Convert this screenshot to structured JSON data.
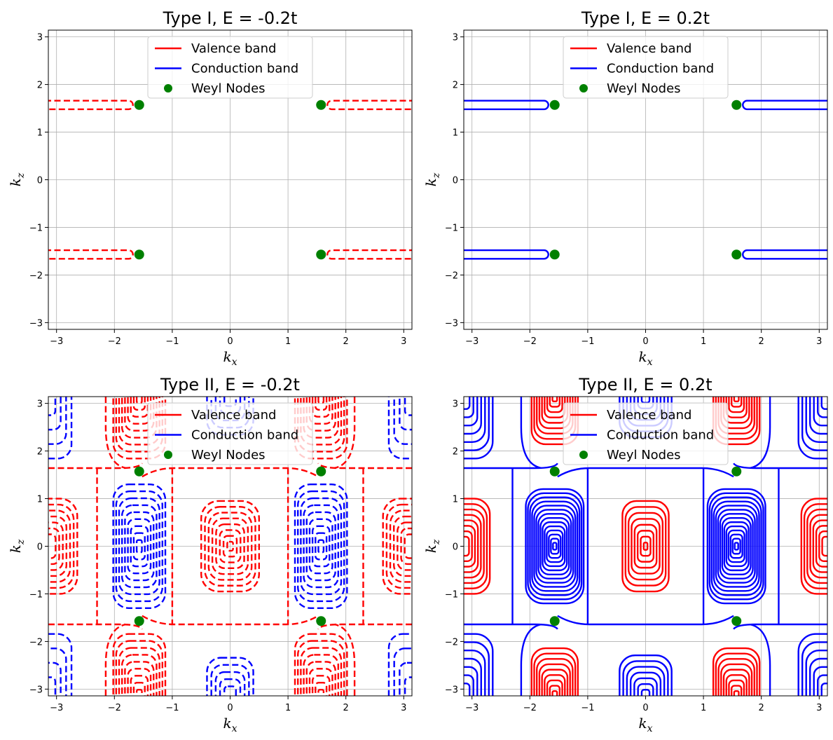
{
  "colors": {
    "valence": "#ff0000",
    "conduction": "#0000ff",
    "nodes": "#008000",
    "grid": "#b0b0b0"
  },
  "chart_data": [
    {
      "type": "contour",
      "title": "Type I, E = -0.2t",
      "xlabel": "k",
      "xlabel_sub": "x",
      "ylabel": "k",
      "ylabel_sub": "z",
      "xlim": [
        -3.14159,
        3.14159
      ],
      "ylim": [
        -3.14159,
        3.14159
      ],
      "xticks": [
        -3,
        -2,
        -1,
        0,
        1,
        2,
        3
      ],
      "yticks": [
        -3,
        -2,
        -1,
        0,
        1,
        2,
        3
      ],
      "xtick_labels": [
        "−3",
        "−2",
        "−1",
        "0",
        "1",
        "2",
        "3"
      ],
      "ytick_labels": [
        "−3",
        "−2",
        "−1",
        "0",
        "1",
        "2",
        "3"
      ],
      "grid": true,
      "legend": {
        "position": "top-center",
        "entries": [
          "Valence band",
          "Conduction band",
          "Weyl Nodes"
        ]
      },
      "weyl_nodes": [
        [
          -1.5708,
          1.5708
        ],
        [
          1.5708,
          1.5708
        ],
        [
          -1.5708,
          -1.5708
        ],
        [
          1.5708,
          -1.5708
        ]
      ],
      "contours": [
        {
          "band": "valence",
          "style": "dashed",
          "shape": "pocket",
          "side": "left",
          "kx_tip": -1.68,
          "kz_center": 1.57,
          "kz_half_width": 0.09
        },
        {
          "band": "valence",
          "style": "dashed",
          "shape": "pocket",
          "side": "right",
          "kx_tip": 1.68,
          "kz_center": 1.57,
          "kz_half_width": 0.09
        },
        {
          "band": "valence",
          "style": "dashed",
          "shape": "pocket",
          "side": "left",
          "kx_tip": -1.68,
          "kz_center": -1.57,
          "kz_half_width": 0.09
        },
        {
          "band": "valence",
          "style": "dashed",
          "shape": "pocket",
          "side": "right",
          "kx_tip": 1.68,
          "kz_center": -1.57,
          "kz_half_width": 0.09
        }
      ]
    },
    {
      "type": "contour",
      "title": "Type I, E = 0.2t",
      "xlabel": "k",
      "xlabel_sub": "x",
      "ylabel": "k",
      "ylabel_sub": "z",
      "xlim": [
        -3.14159,
        3.14159
      ],
      "ylim": [
        -3.14159,
        3.14159
      ],
      "xticks": [
        -3,
        -2,
        -1,
        0,
        1,
        2,
        3
      ],
      "yticks": [
        -3,
        -2,
        -1,
        0,
        1,
        2,
        3
      ],
      "xtick_labels": [
        "−3",
        "−2",
        "−1",
        "0",
        "1",
        "2",
        "3"
      ],
      "ytick_labels": [
        "−3",
        "−2",
        "−1",
        "0",
        "1",
        "2",
        "3"
      ],
      "grid": true,
      "legend": {
        "position": "top-center",
        "entries": [
          "Valence band",
          "Conduction band",
          "Weyl Nodes"
        ]
      },
      "weyl_nodes": [
        [
          -1.5708,
          1.5708
        ],
        [
          1.5708,
          1.5708
        ],
        [
          -1.5708,
          -1.5708
        ],
        [
          1.5708,
          -1.5708
        ]
      ],
      "contours": [
        {
          "band": "conduction",
          "style": "solid",
          "shape": "pocket",
          "side": "left",
          "kx_tip": -1.68,
          "kz_center": 1.57,
          "kz_half_width": 0.09
        },
        {
          "band": "conduction",
          "style": "solid",
          "shape": "pocket",
          "side": "right",
          "kx_tip": 1.68,
          "kz_center": 1.57,
          "kz_half_width": 0.09
        },
        {
          "band": "conduction",
          "style": "solid",
          "shape": "pocket",
          "side": "left",
          "kx_tip": -1.68,
          "kz_center": -1.57,
          "kz_half_width": 0.09
        },
        {
          "band": "conduction",
          "style": "solid",
          "shape": "pocket",
          "side": "right",
          "kx_tip": 1.68,
          "kz_center": -1.57,
          "kz_half_width": 0.09
        }
      ]
    },
    {
      "type": "contour",
      "title": "Type II, E = -0.2t",
      "xlabel": "k",
      "xlabel_sub": "x",
      "ylabel": "k",
      "ylabel_sub": "z",
      "xlim": [
        -3.14159,
        3.14159
      ],
      "ylim": [
        -3.14159,
        3.14159
      ],
      "xticks": [
        -3,
        -2,
        -1,
        0,
        1,
        2,
        3
      ],
      "yticks": [
        -3,
        -2,
        -1,
        0,
        1,
        2,
        3
      ],
      "xtick_labels": [
        "−3",
        "−2",
        "−1",
        "0",
        "1",
        "2",
        "3"
      ],
      "ytick_labels": [
        "−3",
        "−2",
        "−1",
        "0",
        "1",
        "2",
        "3"
      ],
      "grid": true,
      "legend": {
        "position": "top-center",
        "entries": [
          "Valence band",
          "Conduction band",
          "Weyl Nodes"
        ]
      },
      "weyl_nodes": [
        [
          -1.5708,
          1.5708
        ],
        [
          1.5708,
          1.5708
        ],
        [
          -1.5708,
          -1.5708
        ],
        [
          1.5708,
          -1.5708
        ]
      ],
      "contours": [
        {
          "band": "valence",
          "style": "dashed",
          "shape": "rings",
          "cx": 0,
          "cz": 0,
          "rx": 0.5,
          "rz": 0.95,
          "n": 8,
          "min_frac": 0.1
        },
        {
          "band": "conduction",
          "style": "dashed",
          "shape": "rings",
          "cx": -1.57,
          "cz": 0,
          "rx": 0.45,
          "rz": 1.3,
          "n": 9,
          "min_frac": 0.1
        },
        {
          "band": "conduction",
          "style": "dashed",
          "shape": "rings",
          "cx": 1.57,
          "cz": 0,
          "rx": 0.45,
          "rz": 1.3,
          "n": 9,
          "min_frac": 0.1
        },
        {
          "band": "valence",
          "style": "dashed",
          "shape": "rings",
          "cx": -3.14159,
          "cz": 0,
          "rx": 0.5,
          "rz": 1.0,
          "n": 7,
          "min_frac": 0.25
        },
        {
          "band": "valence",
          "style": "dashed",
          "shape": "rings",
          "cx": 3.14159,
          "cz": 0,
          "rx": 0.5,
          "rz": 1.0,
          "n": 7,
          "min_frac": 0.25
        },
        {
          "band": "valence",
          "style": "dashed",
          "shape": "rings",
          "cx": -1.57,
          "cz": 3.14159,
          "rx": 0.45,
          "rz": 1.3,
          "n": 9,
          "min_frac": 0.1
        },
        {
          "band": "valence",
          "style": "dashed",
          "shape": "rings",
          "cx": 1.57,
          "cz": 3.14159,
          "rx": 0.45,
          "rz": 1.3,
          "n": 9,
          "min_frac": 0.1
        },
        {
          "band": "valence",
          "style": "dashed",
          "shape": "rings",
          "cx": -1.57,
          "cz": -3.14159,
          "rx": 0.45,
          "rz": 1.3,
          "n": 9,
          "min_frac": 0.1
        },
        {
          "band": "valence",
          "style": "dashed",
          "shape": "rings",
          "cx": 1.57,
          "cz": -3.14159,
          "rx": 0.45,
          "rz": 1.3,
          "n": 9,
          "min_frac": 0.1
        },
        {
          "band": "conduction",
          "style": "dashed",
          "shape": "rings",
          "cx": 0,
          "cz": 3.14159,
          "rx": 0.4,
          "rz": 0.8,
          "n": 5,
          "min_frac": 0.25
        },
        {
          "band": "conduction",
          "style": "dashed",
          "shape": "rings",
          "cx": 0,
          "cz": -3.14159,
          "rx": 0.4,
          "rz": 0.8,
          "n": 5,
          "min_frac": 0.25
        },
        {
          "band": "conduction",
          "style": "dashed",
          "shape": "rings",
          "cx": -3.14159,
          "cz": 3.14159,
          "rx": 0.4,
          "rz": 1.3,
          "n": 4,
          "min_frac": 0.3
        },
        {
          "band": "conduction",
          "style": "dashed",
          "shape": "rings",
          "cx": 3.14159,
          "cz": 3.14159,
          "rx": 0.4,
          "rz": 1.3,
          "n": 4,
          "min_frac": 0.3
        },
        {
          "band": "conduction",
          "style": "dashed",
          "shape": "rings",
          "cx": -3.14159,
          "cz": -3.14159,
          "rx": 0.4,
          "rz": 1.3,
          "n": 4,
          "min_frac": 0.3
        },
        {
          "band": "conduction",
          "style": "dashed",
          "shape": "rings",
          "cx": 3.14159,
          "cz": -3.14159,
          "rx": 0.4,
          "rz": 1.3,
          "n": 4,
          "min_frac": 0.3
        },
        {
          "band": "valence",
          "style": "dashed",
          "shape": "separatrix"
        }
      ]
    },
    {
      "type": "contour",
      "title": "Type II, E = 0.2t",
      "xlabel": "k",
      "xlabel_sub": "x",
      "ylabel": "k",
      "ylabel_sub": "z",
      "xlim": [
        -3.14159,
        3.14159
      ],
      "ylim": [
        -3.14159,
        3.14159
      ],
      "xticks": [
        -3,
        -2,
        -1,
        0,
        1,
        2,
        3
      ],
      "yticks": [
        -3,
        -2,
        -1,
        0,
        1,
        2,
        3
      ],
      "xtick_labels": [
        "−3",
        "−2",
        "−1",
        "0",
        "1",
        "2",
        "3"
      ],
      "ytick_labels": [
        "−3",
        "−2",
        "−1",
        "0",
        "1",
        "2",
        "3"
      ],
      "grid": true,
      "legend": {
        "position": "top-center",
        "entries": [
          "Valence band",
          "Conduction band",
          "Weyl Nodes"
        ]
      },
      "weyl_nodes": [
        [
          -1.5708,
          1.5708
        ],
        [
          1.5708,
          1.5708
        ],
        [
          -1.5708,
          -1.5708
        ],
        [
          1.5708,
          -1.5708
        ]
      ],
      "contours": [
        {
          "band": "valence",
          "style": "solid",
          "shape": "rings",
          "cx": 0,
          "cz": 0,
          "rx": 0.4,
          "rz": 0.95,
          "n": 8,
          "min_frac": 0.08
        },
        {
          "band": "conduction",
          "style": "solid",
          "shape": "rings",
          "cx": -1.57,
          "cz": 0,
          "rx": 0.5,
          "rz": 1.2,
          "n": 14,
          "min_frac": 0.06
        },
        {
          "band": "conduction",
          "style": "solid",
          "shape": "rings",
          "cx": 1.57,
          "cz": 0,
          "rx": 0.5,
          "rz": 1.2,
          "n": 14,
          "min_frac": 0.06
        },
        {
          "band": "valence",
          "style": "solid",
          "shape": "rings",
          "cx": -3.14159,
          "cz": 0,
          "rx": 0.45,
          "rz": 1.0,
          "n": 8,
          "min_frac": 0.2
        },
        {
          "band": "valence",
          "style": "solid",
          "shape": "rings",
          "cx": 3.14159,
          "cz": 0,
          "rx": 0.45,
          "rz": 1.0,
          "n": 8,
          "min_frac": 0.2
        },
        {
          "band": "valence",
          "style": "solid",
          "shape": "rings",
          "cx": -1.57,
          "cz": 3.14159,
          "rx": 0.4,
          "rz": 1.0,
          "n": 9,
          "min_frac": 0.1
        },
        {
          "band": "valence",
          "style": "solid",
          "shape": "rings",
          "cx": 1.57,
          "cz": 3.14159,
          "rx": 0.4,
          "rz": 1.0,
          "n": 9,
          "min_frac": 0.1
        },
        {
          "band": "valence",
          "style": "solid",
          "shape": "rings",
          "cx": -1.57,
          "cz": -3.14159,
          "rx": 0.4,
          "rz": 1.0,
          "n": 9,
          "min_frac": 0.1
        },
        {
          "band": "valence",
          "style": "solid",
          "shape": "rings",
          "cx": 1.57,
          "cz": -3.14159,
          "rx": 0.4,
          "rz": 1.0,
          "n": 9,
          "min_frac": 0.1
        },
        {
          "band": "conduction",
          "style": "solid",
          "shape": "rings",
          "cx": 0,
          "cz": 3.14159,
          "rx": 0.45,
          "rz": 0.85,
          "n": 7,
          "min_frac": 0.15
        },
        {
          "band": "conduction",
          "style": "solid",
          "shape": "rings",
          "cx": 0,
          "cz": -3.14159,
          "rx": 0.45,
          "rz": 0.85,
          "n": 7,
          "min_frac": 0.15
        },
        {
          "band": "conduction",
          "style": "solid",
          "shape": "rings",
          "cx": -3.14159,
          "cz": 3.14159,
          "rx": 0.5,
          "rz": 1.3,
          "n": 7,
          "min_frac": 0.2
        },
        {
          "band": "conduction",
          "style": "solid",
          "shape": "rings",
          "cx": 3.14159,
          "cz": 3.14159,
          "rx": 0.5,
          "rz": 1.3,
          "n": 7,
          "min_frac": 0.2
        },
        {
          "band": "conduction",
          "style": "solid",
          "shape": "rings",
          "cx": -3.14159,
          "cz": -3.14159,
          "rx": 0.5,
          "rz": 1.3,
          "n": 7,
          "min_frac": 0.2
        },
        {
          "band": "conduction",
          "style": "solid",
          "shape": "rings",
          "cx": 3.14159,
          "cz": -3.14159,
          "rx": 0.5,
          "rz": 1.3,
          "n": 7,
          "min_frac": 0.2
        },
        {
          "band": "conduction",
          "style": "solid",
          "shape": "separatrix"
        }
      ]
    }
  ]
}
